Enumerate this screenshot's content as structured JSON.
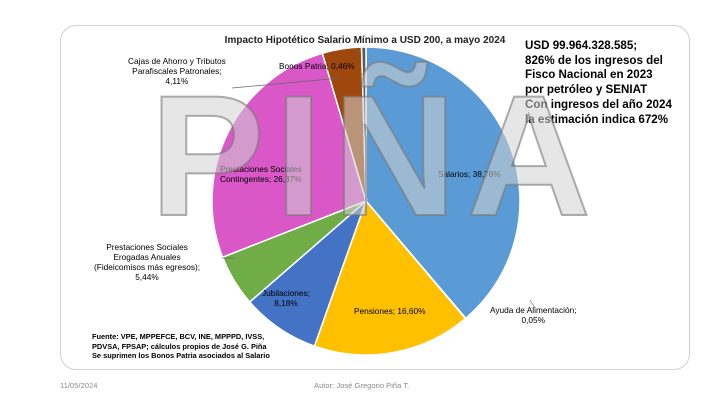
{
  "chart_data": {
    "type": "pie",
    "title": "Impacto Hipotético Salario Mínimo a USD 200, a mayo 2024",
    "slices": [
      {
        "label": "Salarios; 38,78%",
        "value": 38.78,
        "color": "#5b9bd5"
      },
      {
        "label": "Ayuda de Alimentación; 0,05%",
        "value": 0.05,
        "color": "#1f3864"
      },
      {
        "label": "Pensiones; 16,60%",
        "value": 16.6,
        "color": "#ffc000"
      },
      {
        "label": "Jubilaciones; 8,18%",
        "value": 8.18,
        "color": "#4472c4"
      },
      {
        "label": "Prestaciones Sociales Erogadas Anuales (Fideicomisos más egresos); 5,44%",
        "value": 5.44,
        "color": "#70ad47"
      },
      {
        "label": "Prestaciones Sociales Contingentes; 26,37%",
        "value": 26.37,
        "color": "#d957c7"
      },
      {
        "label": "Cajas de Ahorro y Tributos Parafiscales Patronales; 4,11%",
        "value": 4.11,
        "color": "#9e480e"
      },
      {
        "label": "Bonos Patria; 0,46%",
        "value": 0.46,
        "color": "#5a5a5a"
      }
    ]
  },
  "labels": {
    "salarios": "Salarios; 38,78%",
    "ayuda_1": "Ayuda de Alimentación;",
    "ayuda_2": "0,05%",
    "pensiones": "Pensiones; 16,60%",
    "jubilaciones_1": "Jubilaciones;",
    "jubilaciones_2": "8,18%",
    "prest_anuales_1": "Prestaciones Sociales",
    "prest_anuales_2": "Erogadas Anuales",
    "prest_anuales_3": "(Fideicomisos más egresos);",
    "prest_anuales_4": "5,44%",
    "prest_cont_1": "Prestaciones Sociales",
    "prest_cont_2": "Contingentes; 26,37%",
    "cajas_1": "Cajas de Ahorro y Tributos",
    "cajas_2": "Parafiscales Patronales;",
    "cajas_3": "4,11%",
    "bonos": "Bonos Patria; 0,46%"
  },
  "note": {
    "line1": "USD 99.964.328.585;",
    "line2": "826% de los ingresos del",
    "line3": "Fisco Nacional en 2023",
    "line4": "por petróleo y SENIAT",
    "line5": "Con ingresos del año 2024",
    "line6": "la estimación indica 672%"
  },
  "source": {
    "line1": "Fuente: VPE, MPPEFCE, BCV, INE, MPPPD, IVSS,",
    "line2": "PDVSA, FPSAP; cálculos propios de José G. Piña",
    "line3": "Se suprimen los Bonos Patria asociados al Salario"
  },
  "watermark": "PIÑA",
  "footer": {
    "date": "11/05/2024",
    "author": "Autor: José Gregorio Piña T."
  }
}
